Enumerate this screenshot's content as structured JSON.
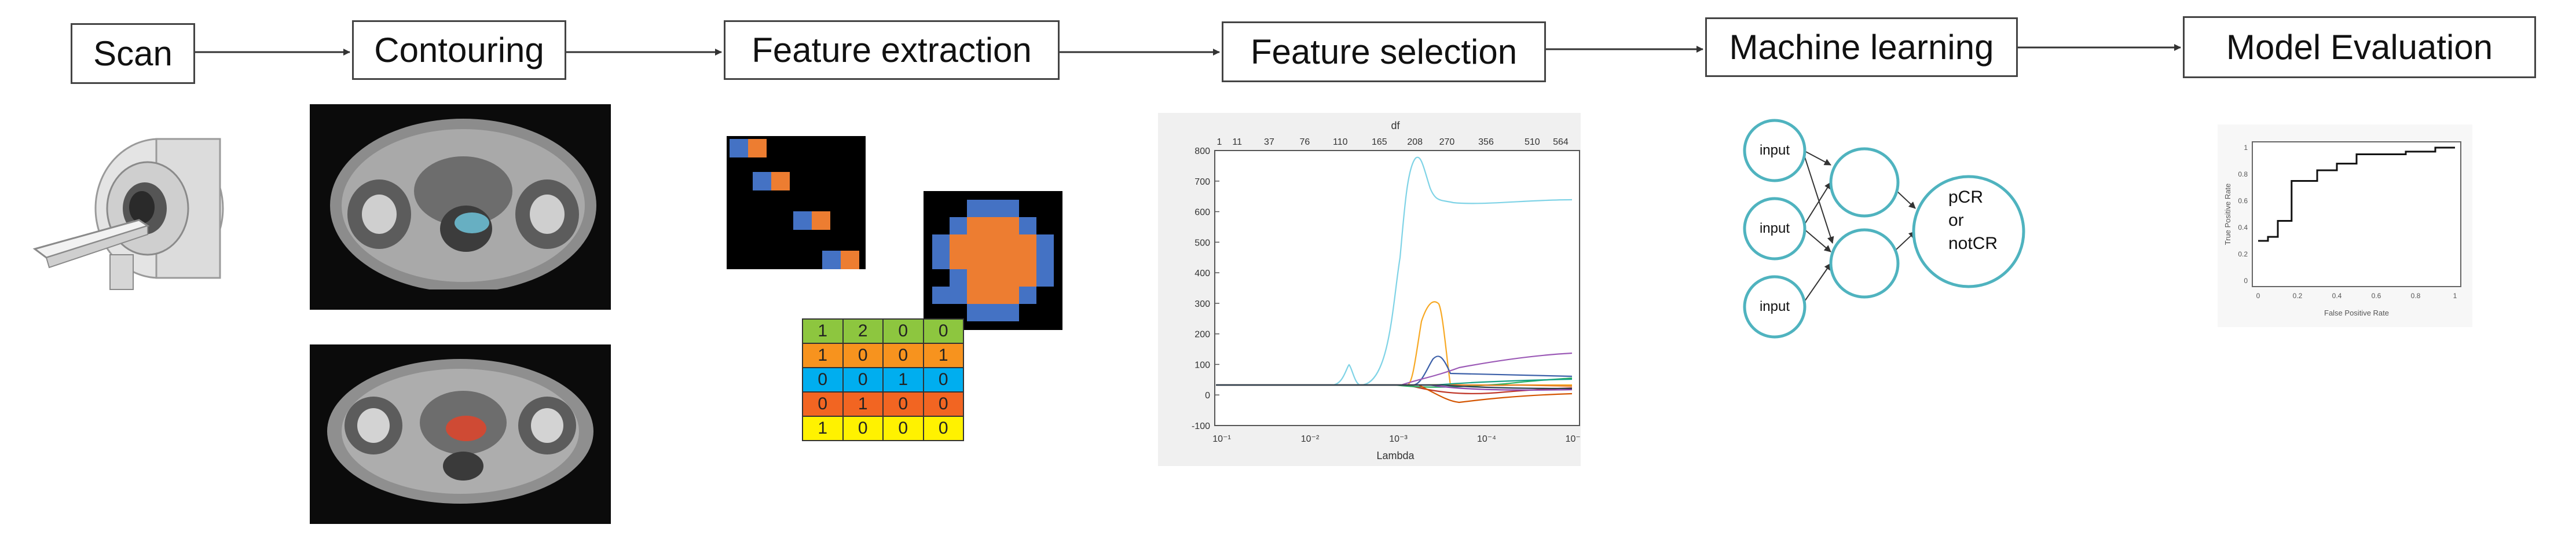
{
  "pipeline": {
    "stages": [
      "Scan",
      "Contouring",
      "Feature extraction",
      "Feature selection",
      "Machine learning",
      "Model Evaluation"
    ]
  },
  "feature_extraction": {
    "matrix": [
      [
        "1",
        "2",
        "0",
        "0"
      ],
      [
        "1",
        "0",
        "0",
        "1"
      ],
      [
        "0",
        "0",
        "1",
        "0"
      ],
      [
        "0",
        "1",
        "0",
        "0"
      ],
      [
        "1",
        "0",
        "0",
        "0"
      ]
    ],
    "row_colors": [
      "#8dc63f",
      "#f7931e",
      "#00aeef",
      "#f26522",
      "#fff200"
    ]
  },
  "feature_selection_plot": {
    "top_axis_title": "df",
    "top_ticks": [
      "1",
      "11",
      "37",
      "76",
      "110",
      "165",
      "208",
      "270",
      "356",
      "510",
      "564"
    ],
    "y_ticks": [
      "800",
      "700",
      "600",
      "500",
      "400",
      "300",
      "200",
      "100",
      "0",
      "-100"
    ],
    "x_ticks": [
      "10⁻¹",
      "10⁻²",
      "10⁻³",
      "10⁻⁴",
      "10⁻⁵"
    ],
    "x_label": "Lambda"
  },
  "machine_learning": {
    "input_label": "input",
    "output_label_lines": [
      "pCR",
      "or",
      "notCR"
    ],
    "node_color": "#4fb3bf"
  },
  "roc_plot": {
    "y_label": "True Positive Rate",
    "x_label": "False Positive Rate",
    "x_ticks": [
      "0",
      "0.2",
      "0.4",
      "0.6",
      "0.8",
      "1"
    ],
    "y_ticks": [
      "0",
      "0.2",
      "0.4",
      "0.6",
      "0.8",
      "1"
    ],
    "curve": [
      [
        0,
        0.3
      ],
      [
        0.05,
        0.3
      ],
      [
        0.05,
        0.33
      ],
      [
        0.1,
        0.33
      ],
      [
        0.1,
        0.45
      ],
      [
        0.17,
        0.45
      ],
      [
        0.17,
        0.75
      ],
      [
        0.3,
        0.75
      ],
      [
        0.3,
        0.83
      ],
      [
        0.4,
        0.83
      ],
      [
        0.4,
        0.88
      ],
      [
        0.5,
        0.88
      ],
      [
        0.5,
        0.95
      ],
      [
        0.75,
        0.95
      ],
      [
        0.75,
        0.97
      ],
      [
        0.9,
        0.97
      ],
      [
        0.9,
        1
      ],
      [
        1,
        1
      ]
    ]
  }
}
